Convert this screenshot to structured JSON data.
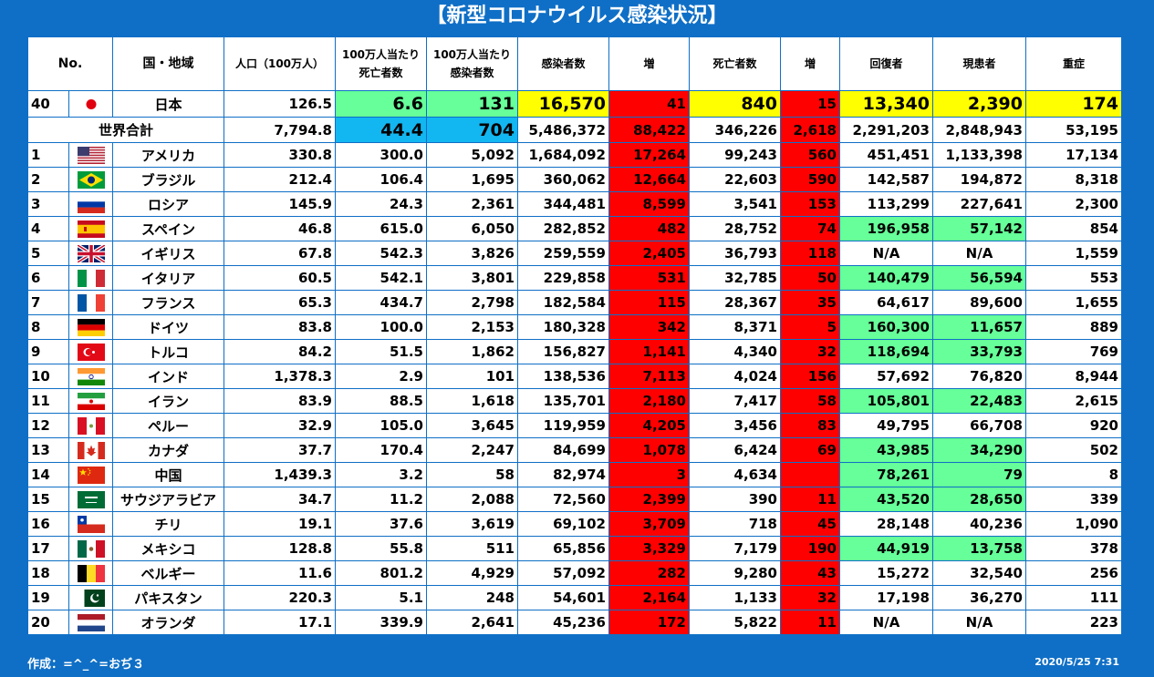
{
  "title": "【新型コロナウイルス感染状況】",
  "headers": {
    "no": "No.",
    "country": "国・地域",
    "population": "人口（100万人）",
    "deaths_per_m_line1": "100万人当たり",
    "deaths_per_m_line2": "死亡者数",
    "cases_per_m_line1": "100万人当たり",
    "cases_per_m_line2": "感染者数",
    "cases": "感染者数",
    "cases_inc": "増",
    "deaths": "死亡者数",
    "deaths_inc": "増",
    "recovered": "回復者",
    "active": "現患者",
    "serious": "重症"
  },
  "japan": {
    "no": "40",
    "flag": "japan-flag-icon",
    "name": "日本",
    "population": "126.5",
    "deaths_per_m": "6.6",
    "cases_per_m": "131",
    "cases": "16,570",
    "cases_inc": "41",
    "deaths": "840",
    "deaths_inc": "15",
    "recovered": "13,340",
    "active": "2,390",
    "serious": "174"
  },
  "world": {
    "label": "世界合計",
    "population": "7,794.8",
    "deaths_per_m": "44.4",
    "cases_per_m": "704",
    "cases": "5,486,372",
    "cases_inc": "88,422",
    "deaths": "346,226",
    "deaths_inc": "2,618",
    "recovered": "2,291,203",
    "active": "2,848,943",
    "serious": "53,195"
  },
  "rows": [
    {
      "no": "1",
      "flag": "usa-flag-icon",
      "name": "アメリカ",
      "population": "330.8",
      "deaths_per_m": "300.0",
      "cases_per_m": "5,092",
      "cases": "1,684,092",
      "cases_inc": "17,264",
      "deaths": "99,243",
      "deaths_inc": "560",
      "recovered": "451,451",
      "active": "1,133,398",
      "serious": "17,134"
    },
    {
      "no": "2",
      "flag": "brazil-flag-icon",
      "name": "ブラジル",
      "population": "212.4",
      "deaths_per_m": "106.4",
      "cases_per_m": "1,695",
      "cases": "360,062",
      "cases_inc": "12,664",
      "deaths": "22,603",
      "deaths_inc": "590",
      "recovered": "142,587",
      "active": "194,872",
      "serious": "8,318"
    },
    {
      "no": "3",
      "flag": "russia-flag-icon",
      "name": "ロシア",
      "population": "145.9",
      "deaths_per_m": "24.3",
      "cases_per_m": "2,361",
      "cases": "344,481",
      "cases_inc": "8,599",
      "deaths": "3,541",
      "deaths_inc": "153",
      "recovered": "113,299",
      "active": "227,641",
      "serious": "2,300"
    },
    {
      "no": "4",
      "flag": "spain-flag-icon",
      "name": "スペイン",
      "population": "46.8",
      "deaths_per_m": "615.0",
      "cases_per_m": "6,050",
      "cases": "282,852",
      "cases_inc": "482",
      "deaths": "28,752",
      "deaths_inc": "74",
      "recovered": "196,958",
      "active": "57,142",
      "serious": "854"
    },
    {
      "no": "5",
      "flag": "uk-flag-icon",
      "name": "イギリス",
      "population": "67.8",
      "deaths_per_m": "542.3",
      "cases_per_m": "3,826",
      "cases": "259,559",
      "cases_inc": "2,405",
      "deaths": "36,793",
      "deaths_inc": "118",
      "recovered": "N/A",
      "active": "N/A",
      "serious": "1,559"
    },
    {
      "no": "6",
      "flag": "italy-flag-icon",
      "name": "イタリア",
      "population": "60.5",
      "deaths_per_m": "542.1",
      "cases_per_m": "3,801",
      "cases": "229,858",
      "cases_inc": "531",
      "deaths": "32,785",
      "deaths_inc": "50",
      "recovered": "140,479",
      "active": "56,594",
      "serious": "553"
    },
    {
      "no": "7",
      "flag": "france-flag-icon",
      "name": "フランス",
      "population": "65.3",
      "deaths_per_m": "434.7",
      "cases_per_m": "2,798",
      "cases": "182,584",
      "cases_inc": "115",
      "deaths": "28,367",
      "deaths_inc": "35",
      "recovered": "64,617",
      "active": "89,600",
      "serious": "1,655"
    },
    {
      "no": "8",
      "flag": "germany-flag-icon",
      "name": "ドイツ",
      "population": "83.8",
      "deaths_per_m": "100.0",
      "cases_per_m": "2,153",
      "cases": "180,328",
      "cases_inc": "342",
      "deaths": "8,371",
      "deaths_inc": "5",
      "recovered": "160,300",
      "active": "11,657",
      "serious": "889"
    },
    {
      "no": "9",
      "flag": "turkey-flag-icon",
      "name": "トルコ",
      "population": "84.2",
      "deaths_per_m": "51.5",
      "cases_per_m": "1,862",
      "cases": "156,827",
      "cases_inc": "1,141",
      "deaths": "4,340",
      "deaths_inc": "32",
      "recovered": "118,694",
      "active": "33,793",
      "serious": "769"
    },
    {
      "no": "10",
      "flag": "india-flag-icon",
      "name": "インド",
      "population": "1,378.3",
      "deaths_per_m": "2.9",
      "cases_per_m": "101",
      "cases": "138,536",
      "cases_inc": "7,113",
      "deaths": "4,024",
      "deaths_inc": "156",
      "recovered": "57,692",
      "active": "76,820",
      "serious": "8,944"
    },
    {
      "no": "11",
      "flag": "iran-flag-icon",
      "name": "イラン",
      "population": "83.9",
      "deaths_per_m": "88.5",
      "cases_per_m": "1,618",
      "cases": "135,701",
      "cases_inc": "2,180",
      "deaths": "7,417",
      "deaths_inc": "58",
      "recovered": "105,801",
      "active": "22,483",
      "serious": "2,615"
    },
    {
      "no": "12",
      "flag": "peru-flag-icon",
      "name": "ペルー",
      "population": "32.9",
      "deaths_per_m": "105.0",
      "cases_per_m": "3,645",
      "cases": "119,959",
      "cases_inc": "4,205",
      "deaths": "3,456",
      "deaths_inc": "83",
      "recovered": "49,795",
      "active": "66,708",
      "serious": "920"
    },
    {
      "no": "13",
      "flag": "canada-flag-icon",
      "name": "カナダ",
      "population": "37.7",
      "deaths_per_m": "170.4",
      "cases_per_m": "2,247",
      "cases": "84,699",
      "cases_inc": "1,078",
      "deaths": "6,424",
      "deaths_inc": "69",
      "recovered": "43,985",
      "active": "34,290",
      "serious": "502"
    },
    {
      "no": "14",
      "flag": "china-flag-icon",
      "name": "中国",
      "population": "1,439.3",
      "deaths_per_m": "3.2",
      "cases_per_m": "58",
      "cases": "82,974",
      "cases_inc": "3",
      "deaths": "4,634",
      "deaths_inc": "",
      "recovered": "78,261",
      "active": "79",
      "serious": "8"
    },
    {
      "no": "15",
      "flag": "saudi-flag-icon",
      "name": "サウジアラビア",
      "population": "34.7",
      "deaths_per_m": "11.2",
      "cases_per_m": "2,088",
      "cases": "72,560",
      "cases_inc": "2,399",
      "deaths": "390",
      "deaths_inc": "11",
      "recovered": "43,520",
      "active": "28,650",
      "serious": "339"
    },
    {
      "no": "16",
      "flag": "chile-flag-icon",
      "name": "チリ",
      "population": "19.1",
      "deaths_per_m": "37.6",
      "cases_per_m": "3,619",
      "cases": "69,102",
      "cases_inc": "3,709",
      "deaths": "718",
      "deaths_inc": "45",
      "recovered": "28,148",
      "active": "40,236",
      "serious": "1,090"
    },
    {
      "no": "17",
      "flag": "mexico-flag-icon",
      "name": "メキシコ",
      "population": "128.8",
      "deaths_per_m": "55.8",
      "cases_per_m": "511",
      "cases": "65,856",
      "cases_inc": "3,329",
      "deaths": "7,179",
      "deaths_inc": "190",
      "recovered": "44,919",
      "active": "13,758",
      "serious": "378"
    },
    {
      "no": "18",
      "flag": "belgium-flag-icon",
      "name": "ベルギー",
      "population": "11.6",
      "deaths_per_m": "801.2",
      "cases_per_m": "4,929",
      "cases": "57,092",
      "cases_inc": "282",
      "deaths": "9,280",
      "deaths_inc": "43",
      "recovered": "15,272",
      "active": "32,540",
      "serious": "256"
    },
    {
      "no": "19",
      "flag": "pakistan-flag-icon",
      "name": "パキスタン",
      "population": "220.3",
      "deaths_per_m": "5.1",
      "cases_per_m": "248",
      "cases": "54,601",
      "cases_inc": "2,164",
      "deaths": "1,133",
      "deaths_inc": "32",
      "recovered": "17,198",
      "active": "36,270",
      "serious": "111"
    },
    {
      "no": "20",
      "flag": "netherlands-flag-icon",
      "name": "オランダ",
      "population": "17.1",
      "deaths_per_m": "339.9",
      "cases_per_m": "2,641",
      "cases": "45,236",
      "cases_inc": "172",
      "deaths": "5,822",
      "deaths_inc": "11",
      "recovered": "N/A",
      "active": "N/A",
      "serious": "223"
    }
  ],
  "footer": {
    "author": "作成：=^_^=おぢ３",
    "date": "2020/5/25 7:31"
  }
}
